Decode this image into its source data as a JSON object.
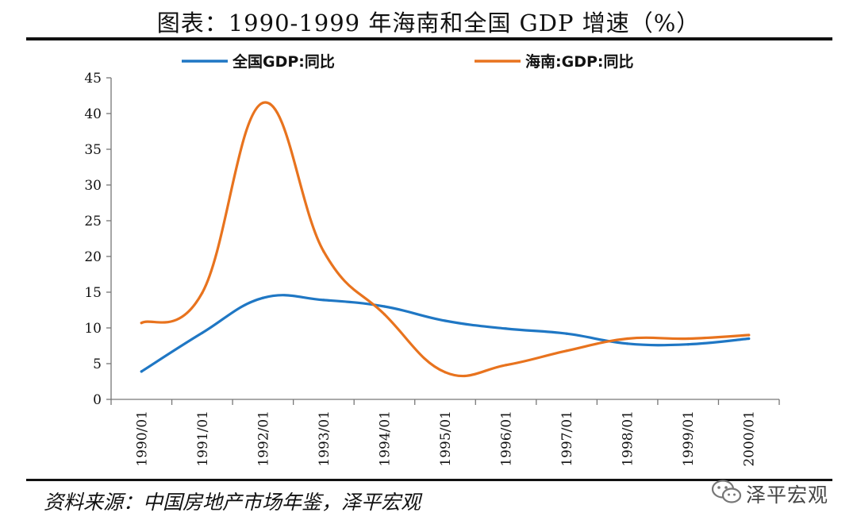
{
  "header": {
    "title": "图表：1990-1999 年海南和全国 GDP 增速（%）"
  },
  "source": "资料来源：中国房地产市场年鉴，泽平宏观",
  "watermark": {
    "text": "泽平宏观",
    "icon": "wechat-icon"
  },
  "colors": {
    "national": "#1f77c4",
    "hainan": "#e8731e"
  },
  "chart_data": {
    "type": "line",
    "title": "",
    "xlabel": "",
    "ylabel": "",
    "ylim": [
      0,
      45
    ],
    "yticks": [
      0,
      5,
      10,
      15,
      20,
      25,
      30,
      35,
      40,
      45
    ],
    "grid": false,
    "legend_position": "top",
    "categories": [
      "1990/01",
      "1991/01",
      "1992/01",
      "1993/01",
      "1994/01",
      "1995/01",
      "1996/01",
      "1997/01",
      "1998/01",
      "1999/01",
      "2000/01"
    ],
    "series": [
      {
        "name": "全国GDP:同比",
        "values": [
          3.9,
          9.3,
          14.2,
          13.9,
          13.0,
          11.0,
          9.9,
          9.2,
          7.8,
          7.7,
          8.5
        ]
      },
      {
        "name": "海南:GDP:同比",
        "values": [
          10.7,
          14.9,
          41.5,
          20.7,
          11.9,
          3.8,
          4.8,
          6.8,
          8.5,
          8.5,
          9.0
        ]
      }
    ]
  }
}
